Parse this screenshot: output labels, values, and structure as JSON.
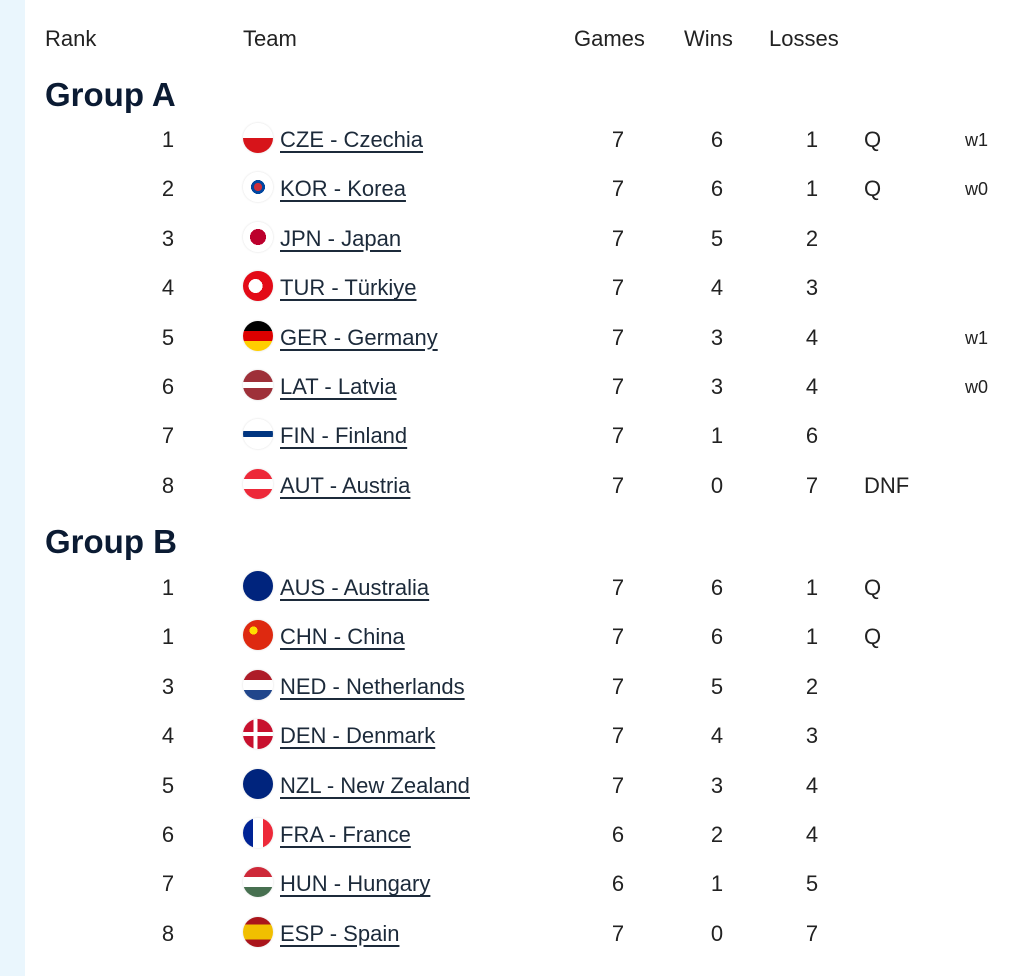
{
  "headers": {
    "rank": "Rank",
    "team": "Team",
    "games": "Games",
    "wins": "Wins",
    "losses": "Losses"
  },
  "groups": [
    {
      "title": "Group A",
      "rows": [
        {
          "rank": "1",
          "flag": "CZE",
          "team": "CZE - Czechia",
          "games": "7",
          "wins": "6",
          "losses": "1",
          "q": "Q",
          "note": "w1"
        },
        {
          "rank": "2",
          "flag": "KOR",
          "team": "KOR - Korea",
          "games": "7",
          "wins": "6",
          "losses": "1",
          "q": "Q",
          "note": "w0"
        },
        {
          "rank": "3",
          "flag": "JPN",
          "team": "JPN - Japan",
          "games": "7",
          "wins": "5",
          "losses": "2",
          "q": "",
          "note": ""
        },
        {
          "rank": "4",
          "flag": "TUR",
          "team": "TUR - Türkiye",
          "games": "7",
          "wins": "4",
          "losses": "3",
          "q": "",
          "note": ""
        },
        {
          "rank": "5",
          "flag": "GER",
          "team": "GER - Germany",
          "games": "7",
          "wins": "3",
          "losses": "4",
          "q": "",
          "note": "w1"
        },
        {
          "rank": "6",
          "flag": "LAT",
          "team": "LAT - Latvia",
          "games": "7",
          "wins": "3",
          "losses": "4",
          "q": "",
          "note": "w0"
        },
        {
          "rank": "7",
          "flag": "FIN",
          "team": "FIN - Finland",
          "games": "7",
          "wins": "1",
          "losses": "6",
          "q": "",
          "note": ""
        },
        {
          "rank": "8",
          "flag": "AUT",
          "team": "AUT - Austria",
          "games": "7",
          "wins": "0",
          "losses": "7",
          "q": "DNF",
          "note": ""
        }
      ]
    },
    {
      "title": "Group B",
      "rows": [
        {
          "rank": "1",
          "flag": "AUS",
          "team": "AUS - Australia",
          "games": "7",
          "wins": "6",
          "losses": "1",
          "q": "Q",
          "note": ""
        },
        {
          "rank": "1",
          "flag": "CHN",
          "team": "CHN - China",
          "games": "7",
          "wins": "6",
          "losses": "1",
          "q": "Q",
          "note": ""
        },
        {
          "rank": "3",
          "flag": "NED",
          "team": "NED - Netherlands",
          "games": "7",
          "wins": "5",
          "losses": "2",
          "q": "",
          "note": ""
        },
        {
          "rank": "4",
          "flag": "DEN",
          "team": "DEN - Denmark",
          "games": "7",
          "wins": "4",
          "losses": "3",
          "q": "",
          "note": ""
        },
        {
          "rank": "5",
          "flag": "NZL",
          "team": "NZL - New Zealand",
          "games": "7",
          "wins": "3",
          "losses": "4",
          "q": "",
          "note": ""
        },
        {
          "rank": "6",
          "flag": "FRA",
          "team": "FRA - France",
          "games": "6",
          "wins": "2",
          "losses": "4",
          "q": "",
          "note": ""
        },
        {
          "rank": "7",
          "flag": "HUN",
          "team": "HUN - Hungary",
          "games": "6",
          "wins": "1",
          "losses": "5",
          "q": "",
          "note": ""
        },
        {
          "rank": "8",
          "flag": "ESP",
          "team": "ESP - Spain",
          "games": "7",
          "wins": "0",
          "losses": "7",
          "q": "",
          "note": ""
        }
      ]
    }
  ]
}
